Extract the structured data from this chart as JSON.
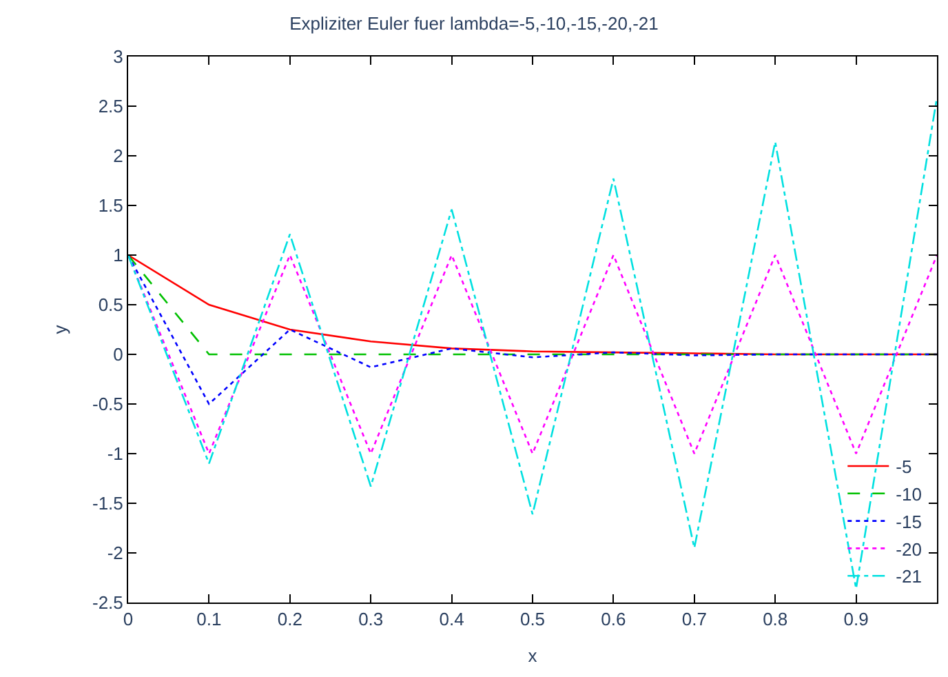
{
  "chart_data": {
    "type": "line",
    "title": "Expliziter Euler fuer lambda=-5,-10,-15,-20,-21",
    "xlabel": "x",
    "ylabel": "y",
    "x": [
      0,
      0.1,
      0.2,
      0.3,
      0.4,
      0.5,
      0.6,
      0.7,
      0.8,
      0.9,
      1.0
    ],
    "series": [
      {
        "name": "-5",
        "color": "#ff0000",
        "line_style": "solid",
        "values": [
          1,
          0.5,
          0.25,
          0.13,
          0.06,
          0.03,
          0.02,
          0.01,
          0,
          0,
          0
        ]
      },
      {
        "name": "-10",
        "color": "#00c000",
        "line_style": "dashed",
        "values": [
          1,
          0,
          0,
          0,
          0,
          0,
          0,
          0,
          0,
          0,
          0
        ]
      },
      {
        "name": "-15",
        "color": "#0000ff",
        "line_style": "dotted",
        "values": [
          1,
          -0.5,
          0.25,
          -0.13,
          0.06,
          -0.03,
          0.02,
          -0.01,
          0,
          0,
          0
        ]
      },
      {
        "name": "-20",
        "color": "#ff00ff",
        "line_style": "dotted",
        "values": [
          1,
          -1,
          1,
          -1,
          1,
          -1,
          1,
          -1,
          1,
          -1,
          1
        ]
      },
      {
        "name": "-21",
        "color": "#00e0e0",
        "line_style": "dashdot",
        "values": [
          1,
          -1.1,
          1.21,
          -1.33,
          1.46,
          -1.61,
          1.77,
          -1.95,
          2.14,
          -2.36,
          2.59
        ]
      }
    ],
    "xlim": [
      0,
      1
    ],
    "xticks": [
      0,
      0.1,
      0.2,
      0.3,
      0.4,
      0.5,
      0.6,
      0.7,
      0.8,
      0.9
    ],
    "ylim": [
      -2.5,
      3
    ],
    "yticks": [
      -2.5,
      -2,
      -1.5,
      -1,
      -0.5,
      0,
      0.5,
      1,
      1.5,
      2,
      2.5,
      3
    ],
    "grid": false,
    "legend": "bottom right",
    "marker": "none"
  }
}
